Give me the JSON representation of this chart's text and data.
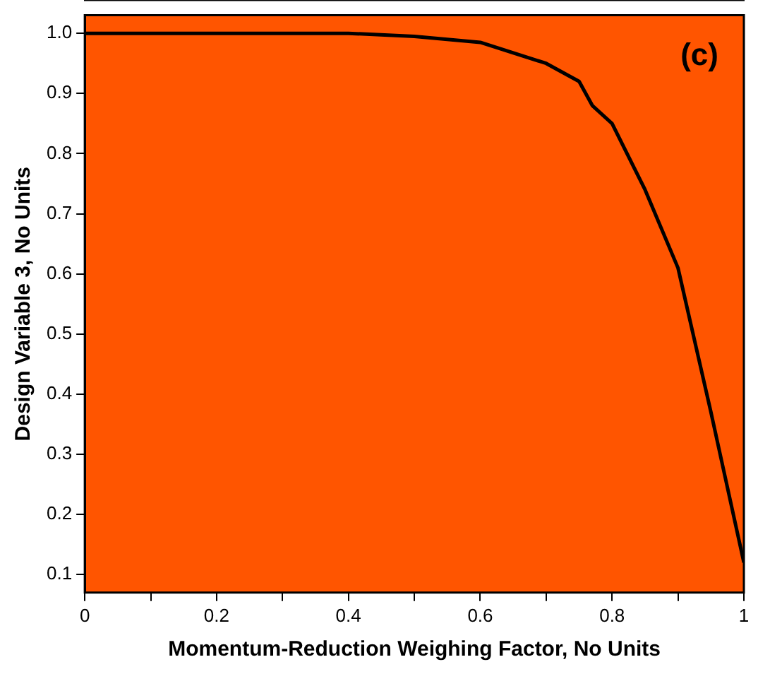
{
  "chart_data": {
    "type": "line",
    "xlabel": "Momentum-Reduction Weighing Factor, No Units",
    "ylabel": "Design Variable 3, No Units",
    "annotations": [
      "(c)"
    ],
    "series": [
      {
        "color": "#000000",
        "x": [
          0,
          0.4,
          0.5,
          0.55,
          0.6,
          0.7,
          0.75,
          0.77,
          0.8,
          0.85,
          0.9,
          0.95,
          1.0
        ],
        "values": [
          1.0,
          1.0,
          0.995,
          0.99,
          0.985,
          0.95,
          0.92,
          0.88,
          0.85,
          0.74,
          0.61,
          0.37,
          0.12
        ]
      }
    ],
    "xlim": [
      0,
      1
    ],
    "ylim": [
      0.07,
      1.03
    ],
    "xticks": [
      0,
      {
        "value": 0.1,
        "label": null
      },
      0.2,
      {
        "value": 0.3,
        "label": null
      },
      0.4,
      {
        "value": 0.5,
        "label": null
      },
      0.6,
      {
        "value": 0.7,
        "label": null
      },
      0.8,
      {
        "value": 0.9,
        "label": null
      },
      1
    ],
    "yticks": [
      0.1,
      0.2,
      0.3,
      0.4,
      0.5,
      0.6,
      0.7,
      0.8,
      0.9,
      {
        "value": 1.0,
        "label": "1.0"
      }
    ],
    "grid": false,
    "legend": false,
    "marker": "none",
    "line_style": "solid"
  }
}
